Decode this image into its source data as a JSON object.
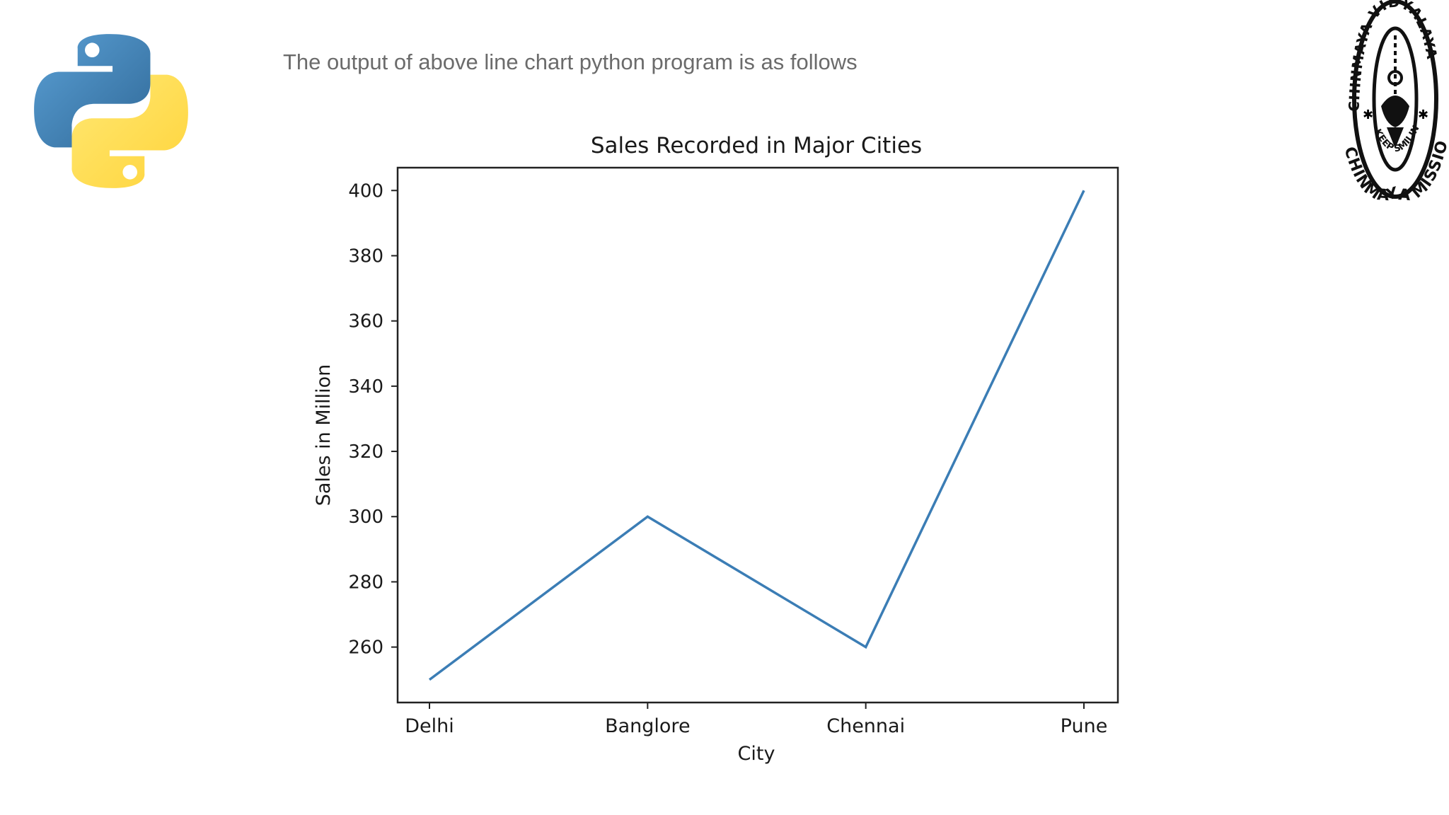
{
  "slide": {
    "caption": "The output of above line chart python program is as follows",
    "logos": {
      "left": "python-logo",
      "right": "chinmaya-vidyalaya-seal"
    },
    "seal_text": {
      "top": "CHINMAYA VIDYALAYA",
      "middle": "KEEP SMILING",
      "bottom": "CHINMAYA MISSION"
    }
  },
  "chart_data": {
    "type": "line",
    "title": "Sales Recorded in Major Cities",
    "xlabel": "City",
    "ylabel": "Sales in Million",
    "categories": [
      "Delhi",
      "Banglore",
      "Chennai",
      "Pune"
    ],
    "values": [
      250,
      300,
      260,
      400
    ],
    "ylim": [
      243,
      407
    ],
    "yticks": [
      260,
      280,
      300,
      320,
      340,
      360,
      380,
      400
    ],
    "grid": false,
    "legend": "none",
    "line_color": "#3b7db5"
  }
}
